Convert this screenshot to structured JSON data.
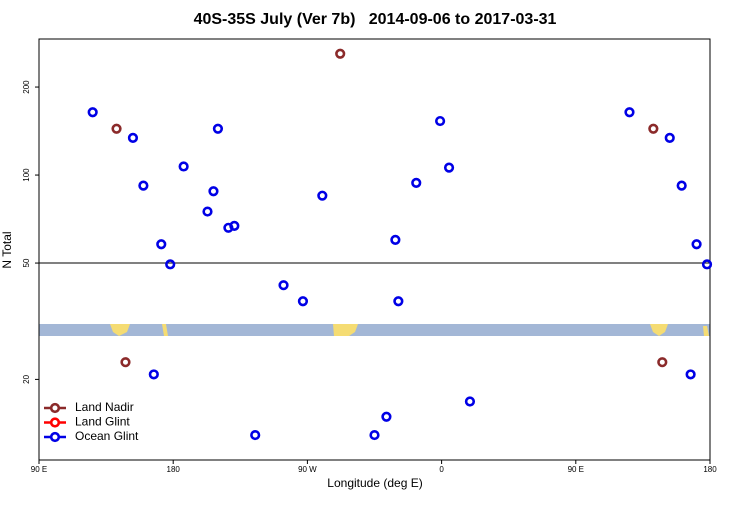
{
  "chart_data": {
    "type": "scatter",
    "title": "40S-35S July (Ver 7b)   2014-09-06 to 2017-03-31",
    "x_label": "Longitude (deg E)",
    "y_label": "N Total",
    "xlim": [
      90,
      540
    ],
    "xticks": [
      {
        "value": 90,
        "label": "90 E"
      },
      180,
      {
        "value": 270,
        "label": "90 W"
      },
      {
        "value": 360,
        "label": "0"
      },
      {
        "value": 450,
        "label": "90 E"
      },
      {
        "value": 540,
        "label": "180"
      }
    ],
    "ylim": [
      10.6,
      292
    ],
    "log_y": true,
    "yticks": [
      20,
      50,
      100,
      200
    ],
    "hline": 50,
    "legend": "lower-left",
    "series": [
      {
        "name": "Land Nadir",
        "color": "#8b2a2a",
        "x": [
          142,
          292,
          148,
          502,
          508
        ],
        "values": [
          144,
          260,
          22.9,
          144,
          22.9
        ]
      },
      {
        "name": "Land Glint",
        "color": "#ff0000",
        "x": [],
        "values": []
      },
      {
        "name": "Ocean Glint",
        "color": "#0000e6",
        "x": [
          126,
          153,
          160,
          172,
          178,
          187,
          203,
          207,
          210,
          217,
          221,
          235,
          254,
          267,
          280,
          315,
          323,
          329,
          331,
          343,
          359,
          365,
          379,
          486,
          513,
          521,
          531,
          538,
          527,
          167
        ],
        "values": [
          164,
          134,
          92,
          58,
          49.5,
          107,
          75,
          88,
          144,
          66,
          67,
          12.9,
          42,
          37,
          85,
          12.9,
          14.9,
          60,
          37,
          94,
          153,
          106,
          16.8,
          164,
          134,
          92,
          58,
          49.5,
          20.8,
          20.8
        ]
      }
    ]
  }
}
